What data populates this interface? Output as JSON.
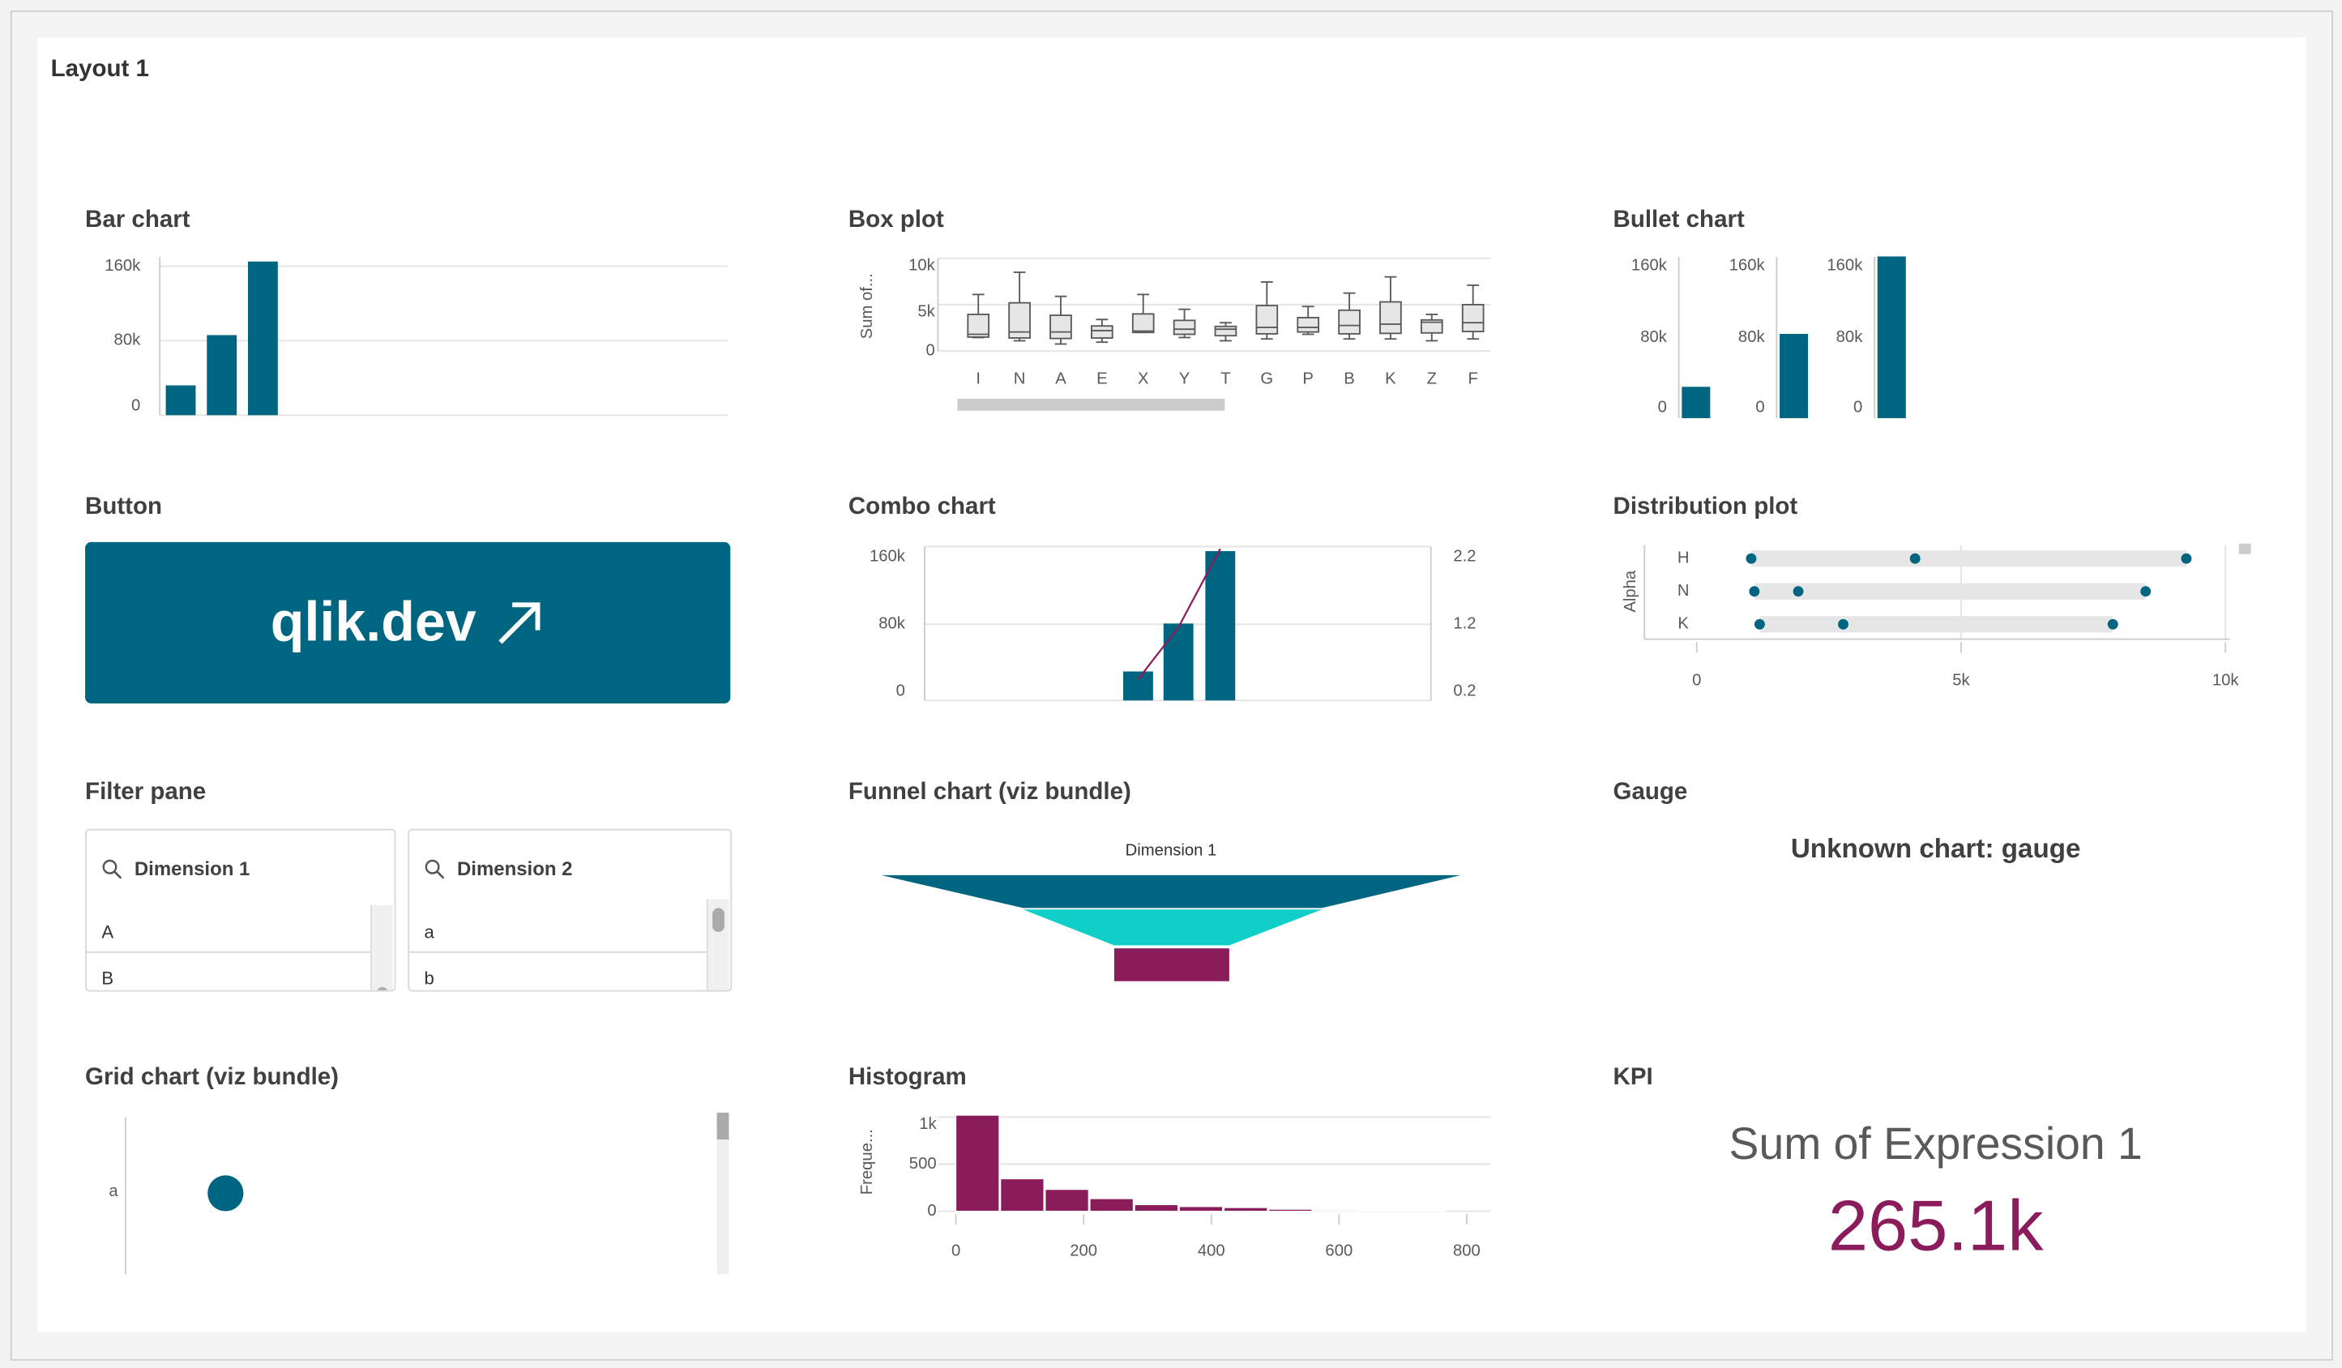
{
  "layout_title": "Layout 1",
  "colors": {
    "teal": "#006580",
    "cyan": "#10cfc9",
    "magenta": "#8a1c5c",
    "box_fill": "#e6e6e6",
    "grid": "#e3e3e3"
  },
  "bar_chart": {
    "title": "Bar chart",
    "chart_data": {
      "type": "bar",
      "values": [
        32000,
        86000,
        165000
      ],
      "yticks": [
        "0",
        "80k",
        "160k"
      ],
      "ylim": [
        0,
        170000
      ]
    }
  },
  "box_plot": {
    "title": "Box plot",
    "chart_data": {
      "type": "boxplot",
      "ylabel": "Sum of...",
      "yticks": [
        "0",
        "5k",
        "10k"
      ],
      "ylim": [
        0,
        10000
      ],
      "categories": [
        "I",
        "N",
        "A",
        "E",
        "X",
        "Y",
        "T",
        "G",
        "P",
        "B",
        "K",
        "Z",
        "F"
      ],
      "boxes": [
        [
          1450,
          1500,
          1800,
          3950,
          6100
        ],
        [
          1100,
          1400,
          2050,
          5200,
          8500
        ],
        [
          750,
          1350,
          2050,
          3850,
          5900
        ],
        [
          950,
          1400,
          2200,
          2700,
          3400
        ],
        [
          2000,
          2000,
          2150,
          4000,
          6100
        ],
        [
          1450,
          1800,
          2350,
          3300,
          4500
        ],
        [
          1100,
          1650,
          2350,
          2650,
          3050
        ],
        [
          1300,
          1850,
          2550,
          4900,
          7450
        ],
        [
          1800,
          2050,
          2550,
          3600,
          4800
        ],
        [
          1300,
          1850,
          2750,
          4400,
          6250
        ],
        [
          1300,
          1900,
          2900,
          5300,
          8000
        ],
        [
          1100,
          1950,
          3100,
          3350,
          3950
        ],
        [
          1300,
          2100,
          3050,
          5000,
          7100
        ]
      ]
    }
  },
  "bullet_chart": {
    "title": "Bullet chart",
    "chart_data": {
      "type": "bullet",
      "values": [
        32000,
        86000,
        165000
      ],
      "yticks": [
        "0",
        "80k",
        "160k"
      ],
      "ylim": [
        0,
        160000
      ]
    }
  },
  "button": {
    "title": "Button",
    "label": "qlik.dev",
    "icon": "arrow-up-right-icon"
  },
  "combo_chart": {
    "title": "Combo chart",
    "chart_data": {
      "type": "combo",
      "bars": [
        32000,
        85000,
        165000
      ],
      "line": [
        0.49,
        1.2,
        2.27
      ],
      "yticks_left": [
        "0",
        "80k",
        "160k"
      ],
      "yticks_right": [
        "0.2",
        "1.2",
        "2.2"
      ],
      "ylim_left": [
        0,
        170000
      ],
      "ylim_right": [
        0.2,
        2.3
      ]
    }
  },
  "distribution_plot": {
    "title": "Distribution plot",
    "chart_data": {
      "type": "distribution",
      "ylabel": "Alpha",
      "categories": [
        "H",
        "N",
        "K"
      ],
      "points": [
        [
          1030,
          4130,
          9260
        ],
        [
          1090,
          1920,
          8490
        ],
        [
          1190,
          2770,
          7870
        ]
      ],
      "xticks": [
        "0",
        "5k",
        "10k"
      ],
      "xlim": [
        0,
        10000
      ]
    }
  },
  "filter_pane": {
    "title": "Filter pane",
    "listboxes": [
      {
        "label": "Dimension 1",
        "items": [
          "A",
          "B"
        ]
      },
      {
        "label": "Dimension 2",
        "items": [
          "a",
          "b"
        ]
      }
    ]
  },
  "funnel_chart": {
    "title": "Funnel chart (viz bundle)",
    "chart_data": {
      "type": "funnel",
      "dimension_label": "Dimension 1"
    }
  },
  "gauge": {
    "title": "Gauge",
    "message": "Unknown chart: gauge"
  },
  "grid_chart": {
    "title": "Grid chart (viz bundle)",
    "chart_data": {
      "type": "grid",
      "rows": [
        "a"
      ]
    }
  },
  "histogram": {
    "title": "Histogram",
    "chart_data": {
      "type": "histogram",
      "ylabel": "Freque...",
      "bin_width": 70,
      "values": [
        1020,
        344,
        231,
        133,
        69,
        49,
        38,
        20,
        12,
        8,
        4
      ],
      "xticks": [
        "0",
        "200",
        "400",
        "600",
        "800"
      ],
      "yticks": [
        "0",
        "500",
        "1k"
      ],
      "xlim": [
        0,
        800
      ],
      "ylim": [
        0,
        1000
      ]
    }
  },
  "kpi": {
    "title": "KPI",
    "label": "Sum of Expression 1",
    "value": "265.1k"
  }
}
